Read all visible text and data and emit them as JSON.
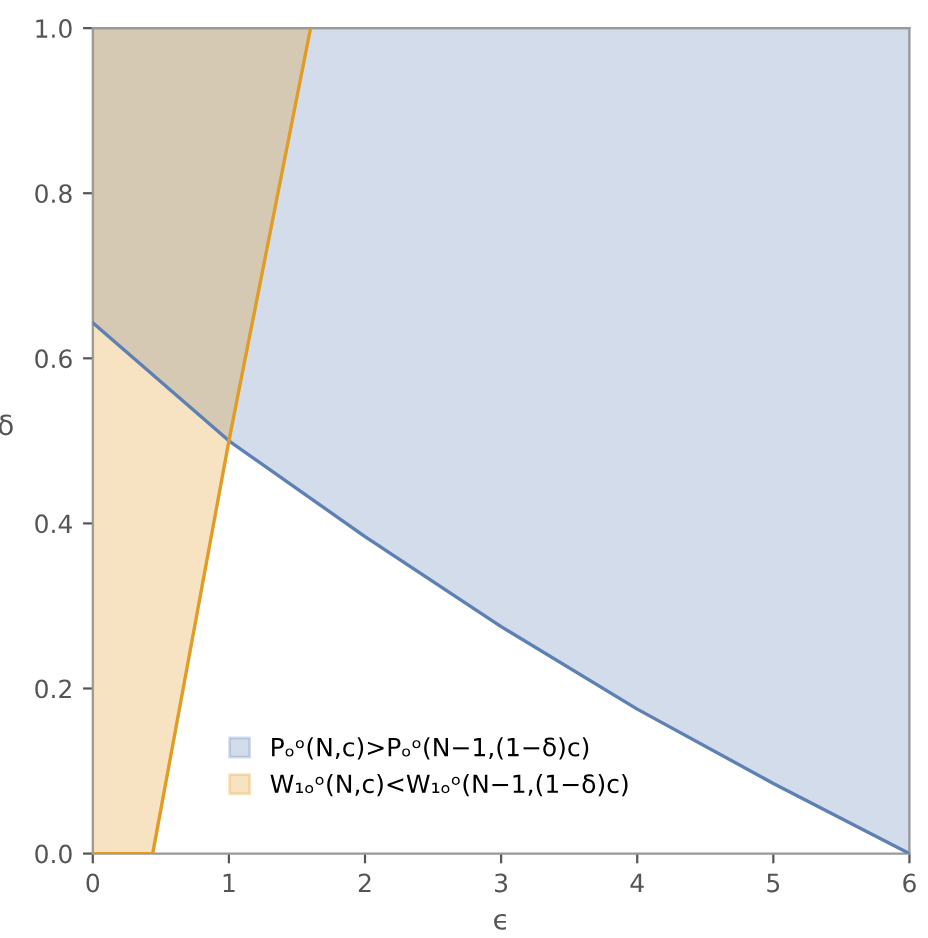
{
  "chart_data": {
    "type": "line",
    "xlabel": "ϵ",
    "ylabel": "δ",
    "xlim": [
      0,
      6
    ],
    "ylim": [
      0,
      1
    ],
    "xticks": [
      0,
      1,
      2,
      3,
      4,
      5,
      6
    ],
    "yticks": [
      {
        "value": 0,
        "label": "0.0"
      },
      {
        "value": 0.2,
        "label": "0.2"
      },
      {
        "value": 0.4,
        "label": "0.4"
      },
      {
        "value": 0.6,
        "label": "0.6"
      },
      {
        "value": 0.8,
        "label": "0.8"
      },
      {
        "value": 1,
        "label": "1.0"
      }
    ],
    "legend": "bottom left",
    "series": [
      {
        "name": "Pₒᵒ(N,c)>Pₒᵒ(N−1,(1−δ)c)",
        "color": "#5e81b5",
        "x": [
          0,
          1,
          2,
          3,
          4,
          5,
          6
        ],
        "values": [
          0.643,
          0.5,
          0.384,
          0.275,
          0.175,
          0.085,
          0
        ],
        "lower": [
          0.643,
          0.5,
          0.384,
          0.275,
          0.175,
          0.085,
          0
        ],
        "upper": [
          1,
          1,
          1,
          1,
          1,
          1,
          1
        ]
      },
      {
        "name": "W₁ₒᵒ(N,c)<W₁ₒᵒ(N−1,(1−δ)c)",
        "color": "#e19c24",
        "x": [
          0,
          0.44,
          1,
          1.6
        ],
        "values": [
          0,
          0,
          0.5,
          1
        ],
        "lower": [
          0,
          0,
          0.5,
          1
        ],
        "upper": [
          1,
          1,
          1,
          1
        ]
      }
    ]
  }
}
